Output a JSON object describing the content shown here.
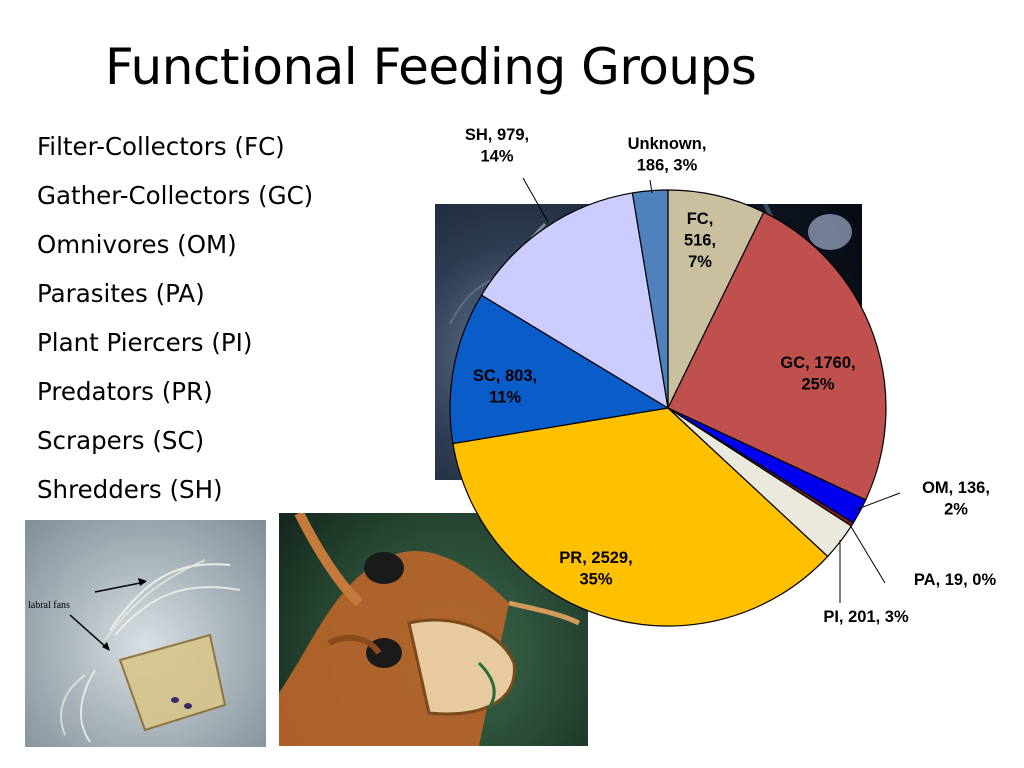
{
  "slide": {
    "title": "Functional Feeding Groups",
    "groups": [
      "Filter-Collectors (FC)",
      "Gather-Collectors (GC)",
      "Omnivores (OM)",
      "Parasites (PA)",
      "Plant Piercers (PI)",
      "Predators (PR)",
      "Scrapers (SC)",
      "Shredders (SH)"
    ]
  },
  "photos": {
    "larva_annotation": "labral fans"
  },
  "chart_data": {
    "type": "pie",
    "title": "",
    "slices": [
      {
        "key": "FC",
        "value": 516,
        "percent": "7%",
        "label": [
          "FC,",
          "516,",
          "7%"
        ],
        "color": "#c9c0a0"
      },
      {
        "key": "GC",
        "value": 1760,
        "percent": "25%",
        "label": [
          "GC, 1760,",
          "25%"
        ],
        "color": "#c0504d"
      },
      {
        "key": "OM",
        "value": 136,
        "percent": "2%",
        "label": [
          "OM, 136,",
          "2%"
        ],
        "color": "#0000ee"
      },
      {
        "key": "PA",
        "value": 19,
        "percent": "0%",
        "label": [
          "PA, 19, 0%"
        ],
        "color": "#7f1f1f"
      },
      {
        "key": "PI",
        "value": 201,
        "percent": "3%",
        "label": [
          "PI, 201, 3%"
        ],
        "color": "#ebe8de"
      },
      {
        "key": "PR",
        "value": 2529,
        "percent": "35%",
        "label": [
          "PR, 2529,",
          "35%"
        ],
        "color": "#ffc000"
      },
      {
        "key": "SC",
        "value": 803,
        "percent": "11%",
        "label": [
          "SC, 803,",
          "11%"
        ],
        "color": "#0a5cc8"
      },
      {
        "key": "SH",
        "value": 979,
        "percent": "14%",
        "label": [
          "SH, 979,",
          "14%"
        ],
        "color": "#ccccff"
      },
      {
        "key": "Unknown",
        "value": 186,
        "percent": "3%",
        "label": [
          "Unknown,",
          "186, 3%"
        ],
        "color": "#4f81bd"
      }
    ]
  }
}
